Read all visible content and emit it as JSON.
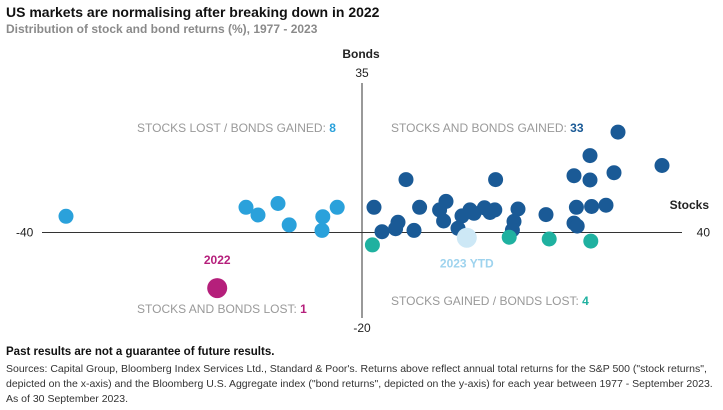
{
  "title": "US markets are normalising after breaking down in 2022",
  "subtitle": "Distribution of stock and bond returns (%), 1977 - 2023",
  "disclaimer": "Past results are not a guarantee of future results.",
  "sources": "Sources: Capital Group, Bloomberg Index Services Ltd., Standard & Poor's. Returns above reflect annual total returns for the S&P 500 (\"stock returns\", depicted on the x-axis) and the Bloomberg U.S. Aggregate index (\"bond returns\", depicted on the y-axis) for each year between 1977 - September 2023. As of 30 September 2023.",
  "chart_data": {
    "type": "scatter",
    "xlabel": "Stocks",
    "ylabel": "Bonds",
    "xlim": [
      -40,
      40
    ],
    "ylim": [
      -20,
      35
    ],
    "tick_labels": {
      "x_min": "-40",
      "x_max": "40",
      "y_max": "35",
      "y_min": "-20"
    },
    "colors": {
      "stocks_and_bonds_gained": "#1a5a96",
      "stocks_lost_bonds_gained": "#2aa1db",
      "stocks_gained_bonds_lost": "#1fb1a0",
      "stocks_and_bonds_lost": "#b51f7b",
      "ytd_2023": "#cde8f6",
      "quadrant_label_text": "#999999"
    },
    "quadrant_labels": [
      {
        "key": "tl",
        "text": "STOCKS LOST / BONDS GAINED: ",
        "count": "8",
        "color": "#2aa1db"
      },
      {
        "key": "tr",
        "text": "STOCKS AND BONDS GAINED: ",
        "count": "33",
        "color": "#1a5a96"
      },
      {
        "key": "bl",
        "text": "STOCKS AND BONDS LOST: ",
        "count": "1",
        "color": "#b51f7b"
      },
      {
        "key": "br",
        "text": "STOCKS GAINED / BONDS LOST: ",
        "count": "4",
        "color": "#1fb1a0"
      }
    ],
    "annotations": [
      {
        "text": "2022",
        "color": "#b51f7b",
        "anchor": "2022"
      },
      {
        "text": "2023 YTD",
        "color": "#9ed3ee",
        "anchor": "2023"
      }
    ],
    "series": [
      {
        "name": "Stocks and bonds gained",
        "color": "#1a5a96",
        "points": [
          [
            32,
            23.5
          ],
          [
            28.5,
            18
          ],
          [
            31.5,
            14
          ],
          [
            26.5,
            13.3
          ],
          [
            28.5,
            12.3
          ],
          [
            37.5,
            15.7
          ],
          [
            5.5,
            12.4
          ],
          [
            16.7,
            12.4
          ],
          [
            30.5,
            6.4
          ],
          [
            28.7,
            6.1
          ],
          [
            26.8,
            5.9
          ],
          [
            19.5,
            5.5
          ],
          [
            19,
            2.6
          ],
          [
            16,
            4.7
          ],
          [
            10.5,
            7.3
          ],
          [
            9.7,
            5.3
          ],
          [
            7.2,
            5.9
          ],
          [
            13.5,
            5.3
          ],
          [
            15.3,
            5.8
          ],
          [
            16.6,
            5.3
          ],
          [
            12.5,
            3.9
          ],
          [
            14,
            4.5
          ],
          [
            10.2,
            2.7
          ],
          [
            23,
            4.2
          ],
          [
            26.5,
            2.2
          ],
          [
            26.9,
            1.5
          ],
          [
            4.5,
            2.4
          ],
          [
            4.2,
            0.9
          ],
          [
            1.5,
            5.9
          ],
          [
            18.8,
            0.6
          ],
          [
            12,
            1.0
          ],
          [
            6.5,
            0.5
          ],
          [
            2.5,
            0.2
          ]
        ]
      },
      {
        "name": "Stocks lost, bonds gained",
        "color": "#2aa1db",
        "points": [
          [
            -37,
            3.8
          ],
          [
            -13,
            4.1
          ],
          [
            -10.5,
            6.8
          ],
          [
            -14.5,
            5.9
          ],
          [
            -3.1,
            5.9
          ],
          [
            -4.9,
            3.7
          ],
          [
            -9.1,
            1.8
          ],
          [
            -5,
            0.5
          ]
        ]
      },
      {
        "name": "Stocks gained, bonds lost",
        "color": "#1fb1a0",
        "points": [
          [
            1.3,
            -2.9
          ],
          [
            18.4,
            -1.1
          ],
          [
            28.6,
            -2.0
          ],
          [
            23.4,
            -1.5
          ]
        ]
      },
      {
        "name": "Stocks and bonds lost",
        "color": "#b51f7b",
        "points": [
          [
            -18.1,
            -13.0
          ]
        ],
        "label": "2022"
      },
      {
        "name": "2023 YTD",
        "color": "#cde8f6",
        "points": [
          [
            13.1,
            -1.2
          ]
        ],
        "label": "2023 YTD"
      }
    ]
  }
}
